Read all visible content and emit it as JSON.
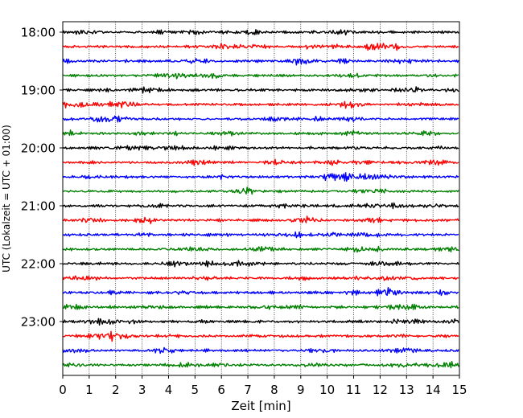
{
  "chart_data": {
    "type": "line",
    "title": "",
    "xlabel": "Zeit  [min]",
    "ylabel": "UTC (Lokalzeit = UTC + 01:00)",
    "xlim": [
      0,
      15
    ],
    "x_ticks": [
      "0",
      "1",
      "2",
      "3",
      "4",
      "5",
      "6",
      "7",
      "8",
      "9",
      "10",
      "11",
      "12",
      "13",
      "14",
      "15"
    ],
    "y_ticks": [
      "18:00",
      "19:00",
      "20:00",
      "21:00",
      "22:00",
      "23:00"
    ],
    "grid": "vertical dotted at each minute",
    "trace_interval_minutes": 15,
    "series": [
      {
        "start": "18:00",
        "color": "#000000"
      },
      {
        "start": "18:15",
        "color": "#ff0000"
      },
      {
        "start": "18:30",
        "color": "#0000ff"
      },
      {
        "start": "18:45",
        "color": "#008000"
      },
      {
        "start": "19:00",
        "color": "#000000"
      },
      {
        "start": "19:15",
        "color": "#ff0000"
      },
      {
        "start": "19:30",
        "color": "#0000ff"
      },
      {
        "start": "19:45",
        "color": "#008000"
      },
      {
        "start": "20:00",
        "color": "#000000"
      },
      {
        "start": "20:15",
        "color": "#ff0000"
      },
      {
        "start": "20:30",
        "color": "#0000ff"
      },
      {
        "start": "20:45",
        "color": "#008000"
      },
      {
        "start": "21:00",
        "color": "#000000"
      },
      {
        "start": "21:15",
        "color": "#ff0000"
      },
      {
        "start": "21:30",
        "color": "#0000ff"
      },
      {
        "start": "21:45",
        "color": "#008000"
      },
      {
        "start": "22:00",
        "color": "#000000"
      },
      {
        "start": "22:15",
        "color": "#ff0000"
      },
      {
        "start": "22:30",
        "color": "#0000ff"
      },
      {
        "start": "22:45",
        "color": "#008000"
      },
      {
        "start": "23:00",
        "color": "#000000"
      },
      {
        "start": "23:15",
        "color": "#ff0000"
      },
      {
        "start": "23:30",
        "color": "#0000ff"
      },
      {
        "start": "23:45",
        "color": "#008000"
      }
    ]
  }
}
